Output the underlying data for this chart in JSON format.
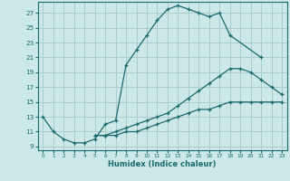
{
  "xlabel": "Humidex (Indice chaleur)",
  "background_color": "#cce8e8",
  "grid_color": "#aacccc",
  "line_color": "#1a6b6b",
  "xlim": [
    -0.5,
    23.5
  ],
  "ylim": [
    8.5,
    28.5
  ],
  "xticks": [
    0,
    1,
    2,
    3,
    4,
    5,
    6,
    7,
    8,
    9,
    10,
    11,
    12,
    13,
    14,
    15,
    16,
    17,
    18,
    19,
    20,
    21,
    22,
    23
  ],
  "yticks": [
    9,
    11,
    13,
    15,
    17,
    19,
    21,
    23,
    25,
    27
  ],
  "curve1_x": [
    0,
    1,
    2,
    3,
    4,
    5,
    6,
    7,
    8,
    9,
    10,
    11,
    12,
    13,
    14,
    15,
    16,
    17,
    18,
    21
  ],
  "curve1_y": [
    13,
    11,
    10,
    9.5,
    9.5,
    10,
    12,
    12.5,
    20,
    22,
    24,
    26,
    27.5,
    28,
    27.5,
    27,
    26.5,
    27,
    24,
    21
  ],
  "curve2_x": [
    5,
    6,
    7,
    8,
    9,
    10,
    11,
    12,
    13,
    14,
    15,
    16,
    17,
    18,
    19,
    20,
    21,
    22,
    23
  ],
  "curve2_y": [
    10.5,
    10.5,
    11,
    11.5,
    12,
    12.5,
    13,
    13.5,
    14.5,
    15.5,
    16.5,
    17.5,
    18.5,
    19.5,
    19.5,
    19,
    18,
    17,
    16
  ],
  "curve3_x": [
    5,
    6,
    7,
    8,
    9,
    10,
    11,
    12,
    13,
    14,
    15,
    16,
    17,
    18,
    19,
    20,
    21,
    22,
    23
  ],
  "curve3_y": [
    10.5,
    10.5,
    10.5,
    11,
    11,
    11.5,
    12,
    12.5,
    13,
    13.5,
    14,
    14,
    14.5,
    15,
    15,
    15,
    15,
    15,
    15
  ]
}
